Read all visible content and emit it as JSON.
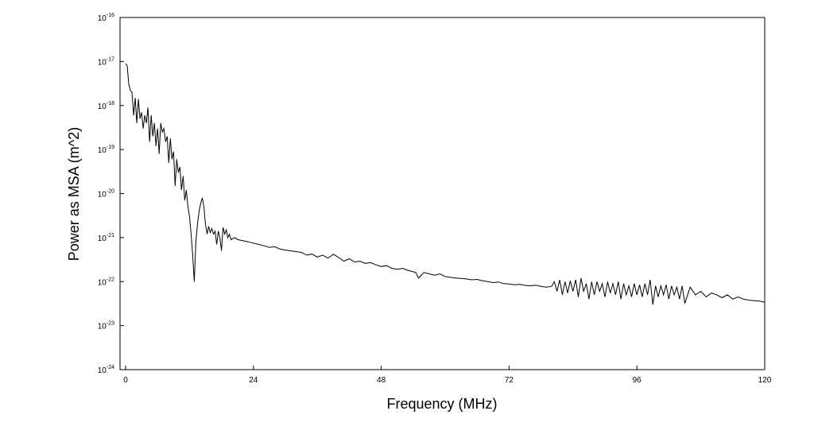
{
  "chart_data": {
    "type": "line",
    "title": "",
    "xlabel": "Frequency (MHz)",
    "ylabel": "Power as MSA (m^2)",
    "xlim": [
      0,
      120
    ],
    "ylim": [
      1e-24,
      1e-16
    ],
    "yscale": "log",
    "grid": false,
    "legend": "none",
    "line_color": "#000000",
    "x_ticks": [
      {
        "value": 0,
        "label": "0"
      },
      {
        "value": 24,
        "label": "24"
      },
      {
        "value": 48,
        "label": "48"
      },
      {
        "value": 72,
        "label": "72"
      },
      {
        "value": 96,
        "label": "96"
      },
      {
        "value": 120,
        "label": "120"
      }
    ],
    "y_ticks": [
      {
        "value": 1e-16,
        "base": "10",
        "exp": "-16"
      },
      {
        "value": 1e-17,
        "base": "10",
        "exp": "-17"
      },
      {
        "value": 1e-18,
        "base": "10",
        "exp": "-18"
      },
      {
        "value": 1e-19,
        "base": "10",
        "exp": "-19"
      },
      {
        "value": 1e-20,
        "base": "10",
        "exp": "-20"
      },
      {
        "value": 1e-21,
        "base": "10",
        "exp": "-21"
      },
      {
        "value": 1e-22,
        "base": "10",
        "exp": "-22"
      },
      {
        "value": 1e-23,
        "base": "10",
        "exp": "-23"
      },
      {
        "value": 1e-24,
        "base": "10",
        "exp": "-24"
      }
    ],
    "series": [
      {
        "x": [
          0,
          0.3,
          0.6,
          0.9,
          1.2,
          1.5,
          1.8,
          2.1,
          2.4,
          2.7,
          3.0,
          3.3,
          3.6,
          3.9,
          4.2,
          4.5,
          4.8,
          5.1,
          5.4,
          5.7,
          6.0,
          6.3,
          6.6,
          6.9,
          7.2,
          7.5,
          7.8,
          8.1,
          8.4,
          8.7,
          9.0,
          9.3,
          9.6,
          9.9,
          10.2,
          10.5,
          10.8,
          11.1,
          11.4,
          11.7,
          12.0,
          12.3,
          12.6,
          12.9,
          13.2,
          13.5,
          13.8,
          14.1,
          14.4,
          14.7,
          15.0,
          15.3,
          15.6,
          15.9,
          16.2,
          16.5,
          16.8,
          17.1,
          17.4,
          17.7,
          18.0,
          18.3,
          18.6,
          18.9,
          19.2,
          19.5,
          19.8,
          20.5,
          21,
          22,
          23,
          24,
          25,
          26,
          27,
          28,
          29,
          30,
          31,
          32,
          33,
          34,
          35,
          36,
          37,
          38,
          39,
          40,
          41,
          42,
          43,
          44,
          45,
          46,
          47,
          48,
          49,
          50,
          51,
          52,
          53,
          53.8,
          54.5,
          55,
          56,
          57,
          58,
          59,
          60,
          61,
          62,
          63,
          64,
          65,
          66,
          67,
          68,
          69,
          70,
          71,
          72,
          73,
          74,
          75,
          76,
          77,
          78,
          79,
          80,
          80.5,
          81,
          81.5,
          82,
          82.5,
          83,
          83.5,
          84,
          84.5,
          85,
          85.5,
          86,
          86.5,
          87,
          87.5,
          88,
          88.5,
          89,
          89.5,
          90,
          90.5,
          91,
          91.5,
          92,
          92.5,
          93,
          93.5,
          94,
          94.5,
          95,
          95.5,
          96,
          96.5,
          97,
          97.5,
          98,
          98.5,
          99,
          99.5,
          100,
          100.5,
          101,
          101.5,
          102,
          102.5,
          103,
          103.5,
          104,
          104.5,
          105,
          106,
          107,
          108,
          109,
          110,
          111,
          112,
          113,
          114,
          115,
          116,
          117,
          118,
          119,
          120
        ],
        "y": [
          9e-18,
          8e-18,
          3e-18,
          2.2e-18,
          2e-18,
          6e-19,
          1.5e-18,
          4e-19,
          1.4e-18,
          5e-19,
          7e-19,
          3e-19,
          6e-19,
          4e-19,
          9e-19,
          1.5e-19,
          6e-19,
          2e-19,
          4e-19,
          1.2e-19,
          3e-19,
          8e-20,
          4e-19,
          2.5e-19,
          3e-19,
          1.5e-19,
          2e-19,
          5e-20,
          1.8e-19,
          6e-20,
          9e-20,
          1.5e-20,
          6e-20,
          3e-20,
          4e-20,
          1.2e-20,
          2.5e-20,
          7e-21,
          1.2e-20,
          5e-21,
          3e-21,
          1.2e-21,
          4e-22,
          1e-22,
          8e-22,
          2e-21,
          4e-21,
          6e-21,
          8e-21,
          5e-21,
          2e-21,
          1.2e-21,
          1.8e-21,
          1.3e-21,
          1.6e-21,
          1.2e-21,
          1.4e-21,
          7e-22,
          1.4e-21,
          1e-21,
          5e-22,
          1.7e-21,
          1.2e-21,
          1.5e-21,
          1e-21,
          1.2e-21,
          9e-22,
          1e-21,
          9e-22,
          8.5e-22,
          8e-22,
          7.5e-22,
          7e-22,
          6.5e-22,
          6e-22,
          6.2e-22,
          5.5e-22,
          5.2e-22,
          5e-22,
          4.8e-22,
          4.6e-22,
          4e-22,
          4.2e-22,
          3.6e-22,
          4e-22,
          3.4e-22,
          4.2e-22,
          3.5e-22,
          2.9e-22,
          3.3e-22,
          2.8e-22,
          2.9e-22,
          2.6e-22,
          2.7e-22,
          2.4e-22,
          2.2e-22,
          2.3e-22,
          2e-22,
          1.9e-22,
          2e-22,
          1.8e-22,
          1.7e-22,
          1.6e-22,
          1.2e-22,
          1.6e-22,
          1.5e-22,
          1.4e-22,
          1.5e-22,
          1.3e-22,
          1.25e-22,
          1.2e-22,
          1.18e-22,
          1.15e-22,
          1.1e-22,
          1.12e-22,
          1.05e-22,
          1e-22,
          9.5e-23,
          9.8e-23,
          9e-23,
          8.8e-23,
          8.5e-23,
          8.7e-23,
          8.2e-23,
          8e-23,
          8.3e-23,
          7.8e-23,
          7.5e-23,
          7.8e-23,
          1e-22,
          6e-23,
          1.1e-22,
          5e-23,
          1e-22,
          5.5e-23,
          1.05e-22,
          6e-23,
          1.1e-22,
          4.5e-23,
          1.2e-22,
          6e-23,
          9e-23,
          4e-23,
          1e-22,
          5e-23,
          1e-22,
          6e-23,
          9e-23,
          4.5e-23,
          1e-22,
          5.5e-23,
          9e-23,
          5e-23,
          1e-22,
          4e-23,
          9e-23,
          5e-23,
          8e-23,
          4.5e-23,
          9e-23,
          5e-23,
          8.5e-23,
          4.5e-23,
          9e-23,
          5e-23,
          1.1e-22,
          3e-23,
          8e-23,
          4.5e-23,
          8e-23,
          5e-23,
          8.5e-23,
          4e-23,
          8e-23,
          5e-23,
          7.5e-23,
          4e-23,
          8e-23,
          3.2e-23,
          7.5e-23,
          5e-23,
          6e-23,
          4.5e-23,
          5.5e-23,
          5e-23,
          4.3e-23,
          5e-23,
          4e-23,
          4.5e-23,
          4e-23,
          3.8e-23,
          3.7e-23,
          3.6e-23,
          3.4e-23
        ]
      }
    ]
  }
}
